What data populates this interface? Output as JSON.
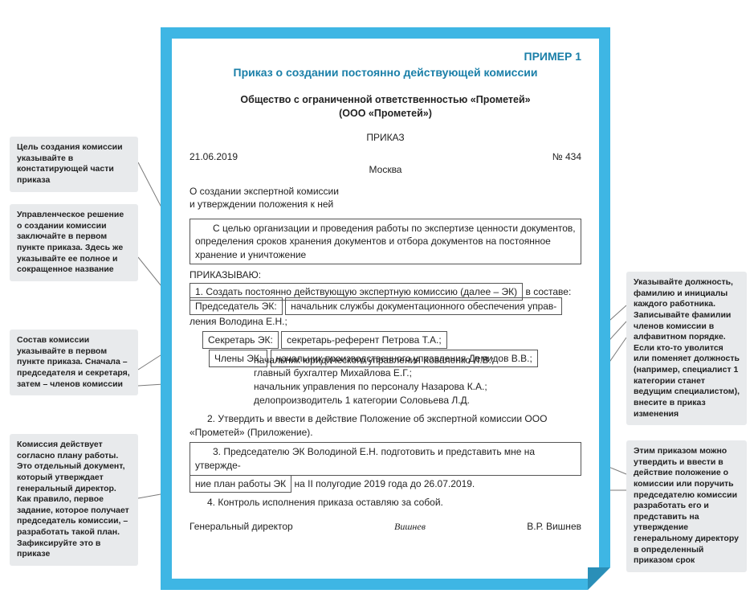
{
  "example_label": "ПРИМЕР 1",
  "doc_title": "Приказ о создании постоянно действующей комиссии",
  "org_name_line1": "Общество с ограниченной ответственностью «Прометей»",
  "org_name_line2": "(ООО «Прометей»)",
  "doc_type": "ПРИКАЗ",
  "date": "21.06.2019",
  "number": "№ 434",
  "city": "Москва",
  "subject_line1": "О создании экспертной комиссии",
  "subject_line2": "и утверждении положения к ней",
  "purpose": "С целью организации и проведения работы по экспертизе ценности документов, определения сроков хранения документов и отбора документов на постоянное хранение и уничтожение",
  "order_head": "ПРИКАЗЫВАЮ:",
  "item1_boxed": "1. Создать постоянно действующую экспертную комиссию (далее – ЭК)",
  "item1_tail": " в составе:",
  "chair_label": "Председатель ЭК:",
  "chair_value_box": "начальник службы документационного обеспечения управ-",
  "chair_value_tail": "ления Володина Е.Н.;",
  "secretary_label": "Секретарь ЭК:",
  "secretary_value": "секретарь-референт Петрова Т.А.;",
  "members_label": "Члены ЭК:",
  "members_first": "начальник производственного управления Демидов В.В.;",
  "members_rest": [
    "начальник юридического управления Коваленко Л.В.;",
    "главный бухгалтер Михайлова Е.Г.;",
    "начальник управления по персоналу Назарова К.А.;",
    "делопроизводитель 1 категории Соловьева Л.Д."
  ],
  "item2": "2. Утвердить и ввести в действие Положение об экспертной комиссии ООО «Прометей» (Приложение).",
  "item3_box_a": "3. Председателю ЭК Володиной Е.Н. подготовить и представить мне на утвержде-",
  "item3_box_b": "ние план работы ЭК",
  "item3_tail": " на II полугодие 2019 года до 26.07.2019.",
  "item4": "4. Контроль исполнения приказа оставляю за собой.",
  "sig_title": "Генеральный директор",
  "sig_sign": "Вишнев",
  "sig_name": "В.Р. Вишнев",
  "callouts": {
    "left1": "Цель создания комиссии указывайте в констатирующей части приказа",
    "left2": "Управленческое решение о создании комиссии заключайте в первом пункте приказа. Здесь же указывайте ее полное и сокращенное название",
    "left3": "Состав комиссии указывайте в первом пункте приказа. Сначала – председателя и секретаря, затем – членов комиссии",
    "left4": "Комиссия действует согласно плану работы. Это отдельный документ, который утверждает генеральный директор. Как правило, первое задание, которое получает председатель комиссии, – разработать такой план. Зафиксируйте это в приказе",
    "right1": "Указывайте должность, фамилию и инициалы каждого работника. Записывайте фамилии членов комиссии в алфавитном порядке. Если кто-то уволится или поменяет должность (например, специалист 1 категории станет ведущим специалистом), внесите в приказ изменения",
    "right2": "Этим приказом можно утвердить и ввести в действие положение о комиссии или поручить председателю комиссии разработать его и представить на утверждение генеральному директору в определенный приказом срок"
  },
  "colors": {
    "frame": "#3eb6e4",
    "headline": "#1a7fa8",
    "callout_bg": "#e8eaec",
    "leader": "#7a7a7a"
  }
}
